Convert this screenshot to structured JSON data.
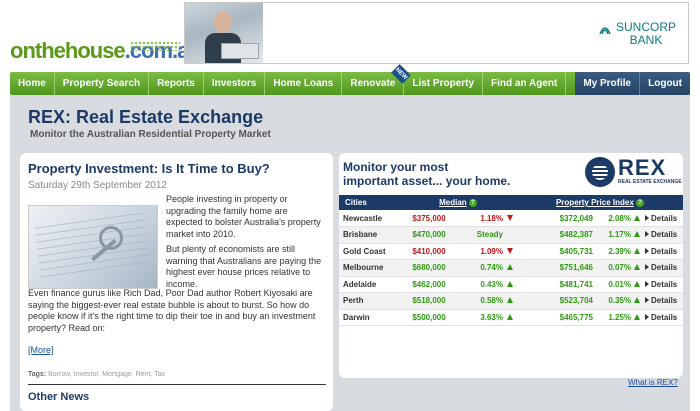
{
  "brand": {
    "logo_part1": "onthehouse",
    "logo_part2": ".com.au"
  },
  "banner": {
    "sponsor_line1": "SUNCORP",
    "sponsor_line2": "BANK"
  },
  "nav": {
    "items": [
      {
        "label": "Home"
      },
      {
        "label": "Property Search"
      },
      {
        "label": "Reports"
      },
      {
        "label": "Investors"
      },
      {
        "label": "Home Loans"
      },
      {
        "label": "Renovate",
        "badge": "NEW"
      },
      {
        "label": "List Property"
      },
      {
        "label": "Find an Agent"
      }
    ],
    "right_items": [
      {
        "label": "My Profile"
      },
      {
        "label": "Logout"
      }
    ]
  },
  "page": {
    "title": "REX: Real Estate Exchange",
    "subtitle": "Monitor the Australian Residential Property Market"
  },
  "article": {
    "title": "Property Investment: Is It Time to Buy?",
    "date": "Saturday 29th September 2012",
    "p1": "People investing in property or upgrading the family home are expected to bolster Australia's property market into 2010.",
    "p2": "But plenty of economists are still warning that Australians are paying the highest ever house prices relative to income.",
    "p3": "Even finance gurus like Rich Dad, Poor Dad author Robert Kiyosaki are saying the biggest-ever real estate bubble is about to burst.  So how do people know if it's the right time to dip their toe in and buy an investment property? Read on:",
    "more": "[More]",
    "tags_label": "Tags:",
    "tags": "Borrow, Investor, Mortgage, Rent, Tax"
  },
  "other_news": "Other News",
  "rex": {
    "headline_line1": "Monitor your most",
    "headline_line2": "important asset... your home.",
    "logo_word": "REX",
    "logo_sub": "REAL ESTATE EXCHANGE",
    "col_cities": "Cities",
    "col_median": "Median",
    "col_index": "Property Price Index",
    "help_glyph": "?",
    "details_label": "Details",
    "rows": [
      {
        "city": "Newcastle",
        "median": "$375,000",
        "median_pct": "1.18%",
        "median_dir": "down",
        "index": "$372,049",
        "index_pct": "2.08%",
        "index_dir": "up"
      },
      {
        "city": "Brisbane",
        "median": "$470,000",
        "median_pct": "Steady",
        "median_dir": "none",
        "index": "$482,387",
        "index_pct": "1.17%",
        "index_dir": "up"
      },
      {
        "city": "Gold Coast",
        "median": "$410,000",
        "median_pct": "1.09%",
        "median_dir": "down",
        "index": "$405,731",
        "index_pct": "2.39%",
        "index_dir": "up"
      },
      {
        "city": "Melbourne",
        "median": "$680,000",
        "median_pct": "0.74%",
        "median_dir": "up",
        "index": "$751,646",
        "index_pct": "0.07%",
        "index_dir": "up"
      },
      {
        "city": "Adelaide",
        "median": "$462,000",
        "median_pct": "0.43%",
        "median_dir": "up",
        "index": "$481,741",
        "index_pct": "0.01%",
        "index_dir": "up"
      },
      {
        "city": "Perth",
        "median": "$518,000",
        "median_pct": "0.58%",
        "median_dir": "up",
        "index": "$523,704",
        "index_pct": "0.35%",
        "index_dir": "up"
      },
      {
        "city": "Darwin",
        "median": "$500,000",
        "median_pct": "3.63%",
        "median_dir": "up",
        "index": "$465,775",
        "index_pct": "1.25%",
        "index_dir": "up"
      }
    ],
    "what_is": "What is REX?"
  },
  "colors": {
    "nav_green": "#5a9a17",
    "brand_blue": "#1b3a66",
    "up": "#2e9a12",
    "down": "#c01919"
  }
}
